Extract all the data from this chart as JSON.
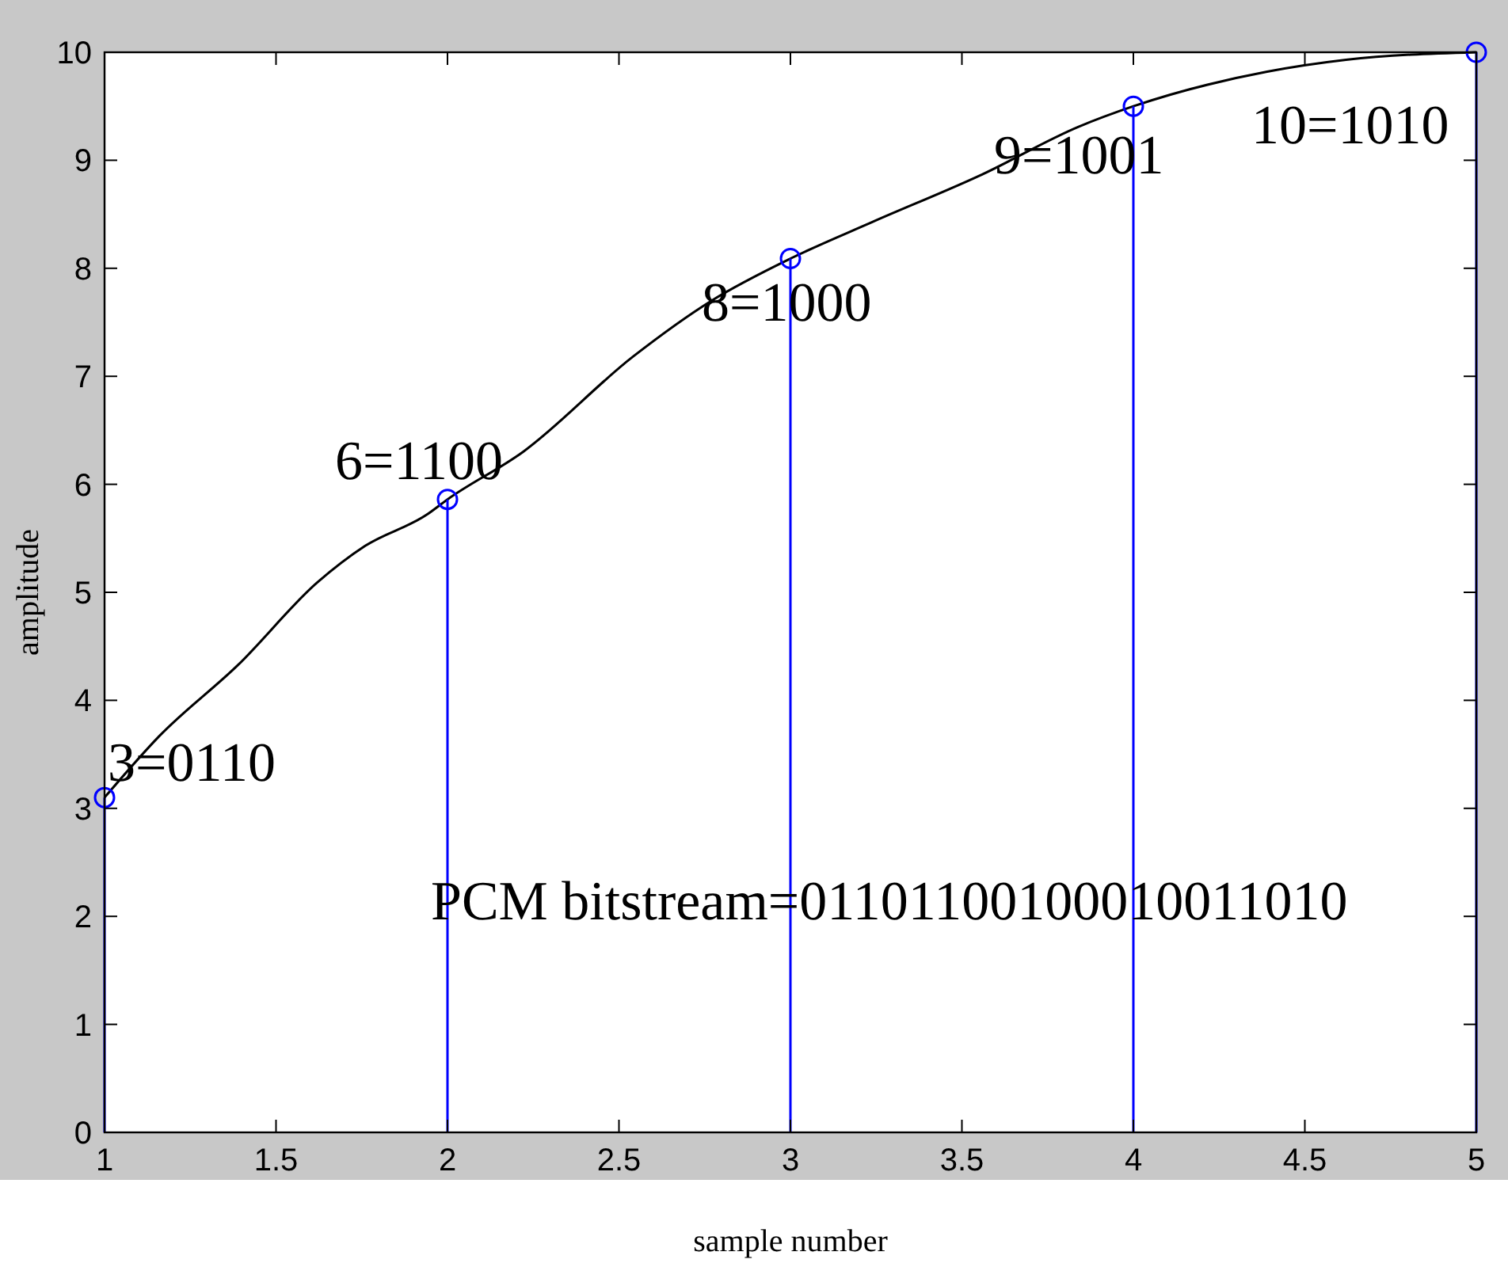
{
  "chart_data": {
    "type": "line",
    "xlabel": "sample number",
    "ylabel": "amplitude",
    "xlim": [
      1,
      5
    ],
    "ylim": [
      0,
      10
    ],
    "xticks": [
      1,
      1.5,
      2,
      2.5,
      3,
      3.5,
      4,
      4.5,
      5
    ],
    "yticks": [
      0,
      1,
      2,
      3,
      4,
      5,
      6,
      7,
      8,
      9,
      10
    ],
    "series": [
      {
        "color": "#000000",
        "marker": "none",
        "x": [
          1,
          1.16,
          1.39,
          1.62,
          1.76,
          1.94,
          2,
          2.22,
          2.54,
          2.77,
          3,
          3.24,
          3.56,
          3.84,
          4,
          4.39,
          4.62,
          5
        ],
        "values": [
          3.1,
          3.67,
          4.33,
          5.09,
          5.43,
          5.72,
          5.86,
          6.3,
          7.18,
          7.7,
          8.09,
          8.43,
          8.87,
          9.31,
          9.5,
          9.82,
          9.93,
          10
        ]
      },
      {
        "type": "lollipop",
        "color": "#0000ff",
        "marker": "circle",
        "x": [
          1,
          2,
          3,
          4,
          5
        ],
        "values": [
          3.1,
          5.86,
          8.09,
          9.5,
          10
        ]
      }
    ],
    "annotations": [
      {
        "text": "3=0110",
        "x": 1,
        "y": 3.1
      },
      {
        "text": "6=1100",
        "x": 2,
        "y": 5.86
      },
      {
        "text": "8=1000",
        "x": 3,
        "y": 8.09
      },
      {
        "text": "9=1001",
        "x": 4,
        "y": 9.5
      },
      {
        "text": "10=1010",
        "x": 5,
        "y": 10
      },
      "PCM bitstream=01101100100010011010"
    ]
  }
}
